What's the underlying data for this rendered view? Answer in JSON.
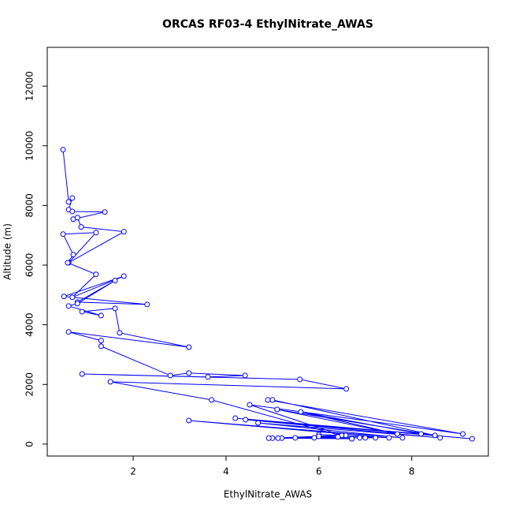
{
  "chart_data": {
    "type": "line",
    "title": "ORCAS RF03-4 EthylNitrate_AWAS",
    "xlabel": "EthylNitrate_AWAS",
    "ylabel": "Altitude (m)",
    "color": "#0000ff",
    "markers": "open-circle",
    "xlim": [
      0.15,
      9.65
    ],
    "ylim": [
      -400,
      13300
    ],
    "xticks": [
      2,
      4,
      6,
      8
    ],
    "yticks": [
      0,
      2000,
      4000,
      6000,
      8000,
      10000,
      12000
    ],
    "x": [
      0.49,
      0.61,
      0.69,
      0.61,
      0.69,
      1.39,
      0.71,
      0.8,
      0.88,
      1.8,
      0.61,
      1.2,
      0.49,
      0.71,
      0.59,
      1.2,
      0.69,
      1.8,
      0.51,
      2.3,
      0.8,
      1.61,
      0.8,
      0.61,
      1.31,
      0.9,
      1.61,
      1.71,
      3.2,
      0.61,
      1.31,
      1.31,
      2.8,
      3.2,
      4.41,
      3.61,
      0.9,
      5.59,
      6.59,
      1.51,
      3.69,
      6.71,
      4.51,
      9.1,
      4.9,
      5.0,
      8.5,
      5.1,
      7.69,
      5.61,
      8.2,
      4.2,
      9.3,
      4.42,
      8.61,
      4.69,
      7.8,
      3.2,
      7.51,
      6.0,
      7.22,
      5.9,
      7.0,
      5.49,
      6.88,
      5.2,
      6.71,
      5.12,
      6.58,
      5.0,
      6.49,
      4.92,
      6.41,
      6.0
    ],
    "values": [
      9870,
      8120,
      8250,
      7860,
      7800,
      7780,
      7540,
      7590,
      7280,
      7120,
      6080,
      7090,
      7040,
      6350,
      6080,
      5690,
      4920,
      5630,
      4950,
      4680,
      4760,
      5480,
      4710,
      4630,
      4310,
      4440,
      4550,
      3730,
      3250,
      3760,
      3470,
      3280,
      2300,
      2380,
      2300,
      2250,
      2350,
      2170,
      1850,
      2090,
      1480,
      180,
      1320,
      340,
      1480,
      1480,
      290,
      1160,
      340,
      1080,
      340,
      870,
      180,
      820,
      210,
      710,
      210,
      790,
      210,
      320,
      210,
      210,
      210,
      210,
      210,
      200,
      180,
      200,
      290,
      200,
      290,
      200,
      240,
      260
    ]
  }
}
